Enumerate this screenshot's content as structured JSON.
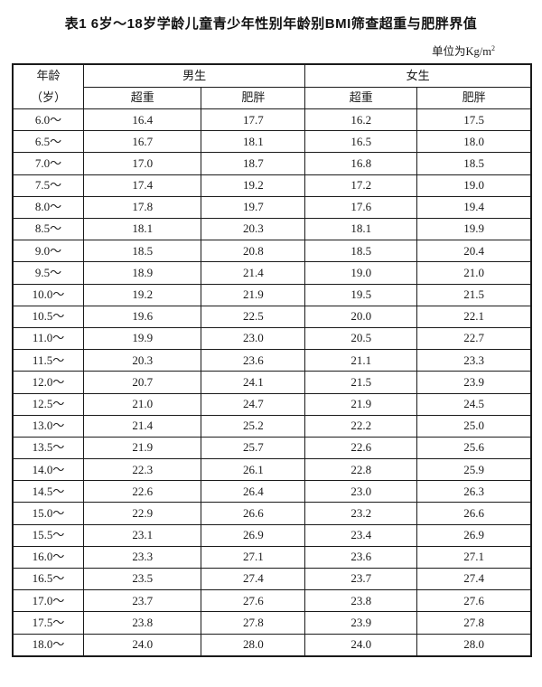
{
  "page": {
    "title": "表1 6岁～18岁学龄儿童青少年性别年龄别BMI筛查超重与肥胖界值",
    "unit_note_prefix": "单位为Kg/m",
    "unit_note_superscript": "2"
  },
  "table": {
    "headers": {
      "age_line1": "年龄",
      "age_line2": "（岁）",
      "boys": "男生",
      "girls": "女生",
      "boys_overweight": "超重",
      "boys_obesity": "肥胖",
      "girls_overweight": "超重",
      "girls_obesity": "肥胖"
    },
    "rows": [
      {
        "age": "6.0～",
        "boy_overweight": "16.4",
        "boy_obesity": "17.7",
        "girl_overweight": "16.2",
        "girl_obesity": "17.5"
      },
      {
        "age": "6.5～",
        "boy_overweight": "16.7",
        "boy_obesity": "18.1",
        "girl_overweight": "16.5",
        "girl_obesity": "18.0"
      },
      {
        "age": "7.0～",
        "boy_overweight": "17.0",
        "boy_obesity": "18.7",
        "girl_overweight": "16.8",
        "girl_obesity": "18.5"
      },
      {
        "age": "7.5～",
        "boy_overweight": "17.4",
        "boy_obesity": "19.2",
        "girl_overweight": "17.2",
        "girl_obesity": "19.0"
      },
      {
        "age": "8.0～",
        "boy_overweight": "17.8",
        "boy_obesity": "19.7",
        "girl_overweight": "17.6",
        "girl_obesity": "19.4"
      },
      {
        "age": "8.5～",
        "boy_overweight": "18.1",
        "boy_obesity": "20.3",
        "girl_overweight": "18.1",
        "girl_obesity": "19.9"
      },
      {
        "age": "9.0～",
        "boy_overweight": "18.5",
        "boy_obesity": "20.8",
        "girl_overweight": "18.5",
        "girl_obesity": "20.4"
      },
      {
        "age": "9.5～",
        "boy_overweight": "18.9",
        "boy_obesity": "21.4",
        "girl_overweight": "19.0",
        "girl_obesity": "21.0"
      },
      {
        "age": "10.0～",
        "boy_overweight": "19.2",
        "boy_obesity": "21.9",
        "girl_overweight": "19.5",
        "girl_obesity": "21.5"
      },
      {
        "age": "10.5～",
        "boy_overweight": "19.6",
        "boy_obesity": "22.5",
        "girl_overweight": "20.0",
        "girl_obesity": "22.1"
      },
      {
        "age": "11.0～",
        "boy_overweight": "19.9",
        "boy_obesity": "23.0",
        "girl_overweight": "20.5",
        "girl_obesity": "22.7"
      },
      {
        "age": "11.5～",
        "boy_overweight": "20.3",
        "boy_obesity": "23.6",
        "girl_overweight": "21.1",
        "girl_obesity": "23.3"
      },
      {
        "age": "12.0～",
        "boy_overweight": "20.7",
        "boy_obesity": "24.1",
        "girl_overweight": "21.5",
        "girl_obesity": "23.9"
      },
      {
        "age": "12.5～",
        "boy_overweight": "21.0",
        "boy_obesity": "24.7",
        "girl_overweight": "21.9",
        "girl_obesity": "24.5"
      },
      {
        "age": "13.0～",
        "boy_overweight": "21.4",
        "boy_obesity": "25.2",
        "girl_overweight": "22.2",
        "girl_obesity": "25.0"
      },
      {
        "age": "13.5～",
        "boy_overweight": "21.9",
        "boy_obesity": "25.7",
        "girl_overweight": "22.6",
        "girl_obesity": "25.6"
      },
      {
        "age": "14.0～",
        "boy_overweight": "22.3",
        "boy_obesity": "26.1",
        "girl_overweight": "22.8",
        "girl_obesity": "25.9"
      },
      {
        "age": "14.5～",
        "boy_overweight": "22.6",
        "boy_obesity": "26.4",
        "girl_overweight": "23.0",
        "girl_obesity": "26.3"
      },
      {
        "age": "15.0～",
        "boy_overweight": "22.9",
        "boy_obesity": "26.6",
        "girl_overweight": "23.2",
        "girl_obesity": "26.6"
      },
      {
        "age": "15.5～",
        "boy_overweight": "23.1",
        "boy_obesity": "26.9",
        "girl_overweight": "23.4",
        "girl_obesity": "26.9"
      },
      {
        "age": "16.0～",
        "boy_overweight": "23.3",
        "boy_obesity": "27.1",
        "girl_overweight": "23.6",
        "girl_obesity": "27.1"
      },
      {
        "age": "16.5～",
        "boy_overweight": "23.5",
        "boy_obesity": "27.4",
        "girl_overweight": "23.7",
        "girl_obesity": "27.4"
      },
      {
        "age": "17.0～",
        "boy_overweight": "23.7",
        "boy_obesity": "27.6",
        "girl_overweight": "23.8",
        "girl_obesity": "27.6"
      },
      {
        "age": "17.5～",
        "boy_overweight": "23.8",
        "boy_obesity": "27.8",
        "girl_overweight": "23.9",
        "girl_obesity": "27.8"
      },
      {
        "age": "18.0～",
        "boy_overweight": "24.0",
        "boy_obesity": "28.0",
        "girl_overweight": "24.0",
        "girl_obesity": "28.0"
      }
    ]
  },
  "colors": {
    "border": "#1a1a1a",
    "text": "#1a1a1a",
    "background": "#ffffff"
  }
}
